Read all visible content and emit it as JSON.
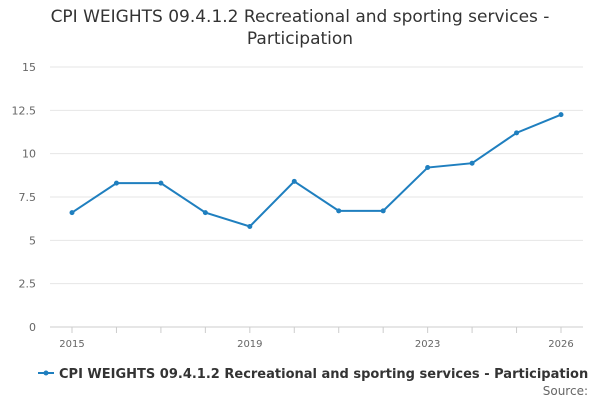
{
  "chart_data": {
    "type": "line",
    "title_line1": "CPI WEIGHTS 09.4.1.2 Recreational and sporting services -",
    "title_line2": "Participation",
    "x": [
      2015,
      2016,
      2017,
      2018,
      2019,
      2020,
      2021,
      2022,
      2023,
      2024,
      2025,
      2026
    ],
    "x_ticks": [
      "2015",
      "2019",
      "2023",
      "2026"
    ],
    "y_ticks": [
      "0",
      "2.5",
      "5",
      "7.5",
      "10",
      "12.5",
      "15"
    ],
    "ylim": [
      0,
      15
    ],
    "grid": true,
    "legend_position": "bottom",
    "series": [
      {
        "name": "CPI WEIGHTS 09.4.1.2 Recreational and sporting services - Participation",
        "color": "#1f7fbf",
        "values": [
          6.6,
          8.3,
          8.3,
          6.6,
          5.8,
          8.4,
          6.7,
          6.7,
          9.2,
          9.45,
          11.2,
          12.25
        ]
      }
    ],
    "source_label": "Source:"
  }
}
